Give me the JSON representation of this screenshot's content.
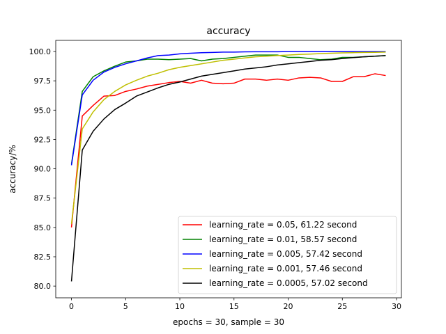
{
  "chart_data": {
    "type": "line",
    "title": "accuracy",
    "xlabel": "epochs = 30, sample = 30",
    "ylabel": "accuracy/%",
    "xlim": [
      -1.45,
      30.45
    ],
    "ylim": [
      79.0,
      100.95
    ],
    "xticks": [
      0,
      5,
      10,
      15,
      20,
      25,
      30
    ],
    "yticks": [
      80.0,
      82.5,
      85.0,
      87.5,
      90.0,
      92.5,
      95.0,
      97.5,
      100.0
    ],
    "ytick_labels": [
      "80.0",
      "82.5",
      "85.0",
      "87.5",
      "90.0",
      "92.5",
      "95.0",
      "97.5",
      "100.0"
    ],
    "grid": false,
    "legend_position": "lower-right",
    "x": [
      0,
      1,
      2,
      3,
      4,
      5,
      6,
      7,
      8,
      9,
      10,
      11,
      12,
      13,
      14,
      15,
      16,
      17,
      18,
      19,
      20,
      21,
      22,
      23,
      24,
      25,
      26,
      27,
      28,
      29
    ],
    "series": [
      {
        "name": "learning_rate = 0.05, 61.22 second",
        "color": "#ff0000",
        "values": [
          85.0,
          94.5,
          95.4,
          96.2,
          96.25,
          96.6,
          96.8,
          97.05,
          97.2,
          97.35,
          97.45,
          97.3,
          97.55,
          97.3,
          97.25,
          97.3,
          97.65,
          97.65,
          97.55,
          97.65,
          97.55,
          97.75,
          97.8,
          97.75,
          97.45,
          97.45,
          97.85,
          97.85,
          98.1,
          97.95
        ]
      },
      {
        "name": "learning_rate = 0.01, 58.57 second",
        "color": "#008000",
        "values": [
          90.4,
          96.6,
          97.85,
          98.35,
          98.75,
          99.1,
          99.2,
          99.35,
          99.35,
          99.3,
          99.35,
          99.4,
          99.2,
          99.35,
          99.4,
          99.5,
          99.6,
          99.7,
          99.7,
          99.7,
          99.5,
          99.5,
          99.4,
          99.3,
          99.35,
          99.5,
          99.5,
          99.55,
          99.6,
          99.65
        ]
      },
      {
        "name": "learning_rate = 0.005, 57.42 second",
        "color": "#0000ff",
        "values": [
          90.3,
          96.3,
          97.55,
          98.25,
          98.65,
          98.95,
          99.2,
          99.45,
          99.65,
          99.7,
          99.8,
          99.85,
          99.9,
          99.92,
          99.95,
          99.95,
          99.97,
          99.98,
          99.98,
          99.98,
          99.99,
          99.99,
          99.99,
          99.99,
          99.99,
          99.99,
          99.99,
          99.99,
          99.99,
          99.99
        ]
      },
      {
        "name": "learning_rate = 0.001, 57.46 second",
        "color": "#bfbf00",
        "values": [
          85.3,
          93.4,
          94.85,
          95.9,
          96.6,
          97.15,
          97.55,
          97.9,
          98.15,
          98.45,
          98.65,
          98.8,
          98.95,
          99.1,
          99.25,
          99.35,
          99.45,
          99.55,
          99.6,
          99.65,
          99.7,
          99.75,
          99.78,
          99.82,
          99.85,
          99.88,
          99.9,
          99.92,
          99.93,
          99.95
        ]
      },
      {
        "name": "learning_rate = 0.0005, 57.02 second",
        "color": "#000000",
        "values": [
          80.4,
          91.6,
          93.2,
          94.25,
          95.05,
          95.6,
          96.2,
          96.55,
          96.9,
          97.2,
          97.4,
          97.65,
          97.9,
          98.05,
          98.2,
          98.35,
          98.5,
          98.6,
          98.7,
          98.85,
          98.95,
          99.05,
          99.15,
          99.25,
          99.3,
          99.4,
          99.48,
          99.55,
          99.6,
          99.65
        ]
      }
    ]
  }
}
